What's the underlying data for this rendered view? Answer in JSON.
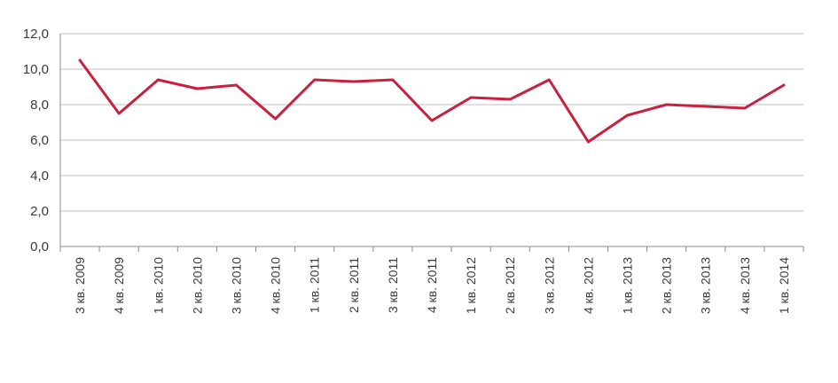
{
  "chart_data": {
    "type": "line",
    "title": "",
    "xlabel": "",
    "ylabel": "",
    "ylim": [
      0,
      12
    ],
    "yticks": [
      "0,0",
      "2,0",
      "4,0",
      "6,0",
      "8,0",
      "10,0",
      "12,0"
    ],
    "grid": true,
    "legend": "none",
    "categories": [
      "3 кв. 2009",
      "4 кв. 2009",
      "1 кв. 2010",
      "2 кв. 2010",
      "3 кв. 2010",
      "4 кв. 2010",
      "1 кв. 2011",
      "2 кв. 2011",
      "3 кв. 2011",
      "4 кв. 2011",
      "1 кв. 2012",
      "2 кв. 2012",
      "3 кв. 2012",
      "4 кв. 2012",
      "1 кв. 2013",
      "2 кв. 2013",
      "3 кв. 2013",
      "4 кв. 2013",
      "1 кв. 2014"
    ],
    "series": [
      {
        "color": "#c8203f",
        "values": [
          10.5,
          7.5,
          9.4,
          8.9,
          9.1,
          7.2,
          9.4,
          9.3,
          9.4,
          7.1,
          8.4,
          8.3,
          9.4,
          5.9,
          7.4,
          8.0,
          7.9,
          7.8,
          9.1
        ]
      }
    ],
    "colors": {
      "grid": "#bfbfbf",
      "axis": "#8c8c8c",
      "text": "#3a3a3a"
    }
  }
}
